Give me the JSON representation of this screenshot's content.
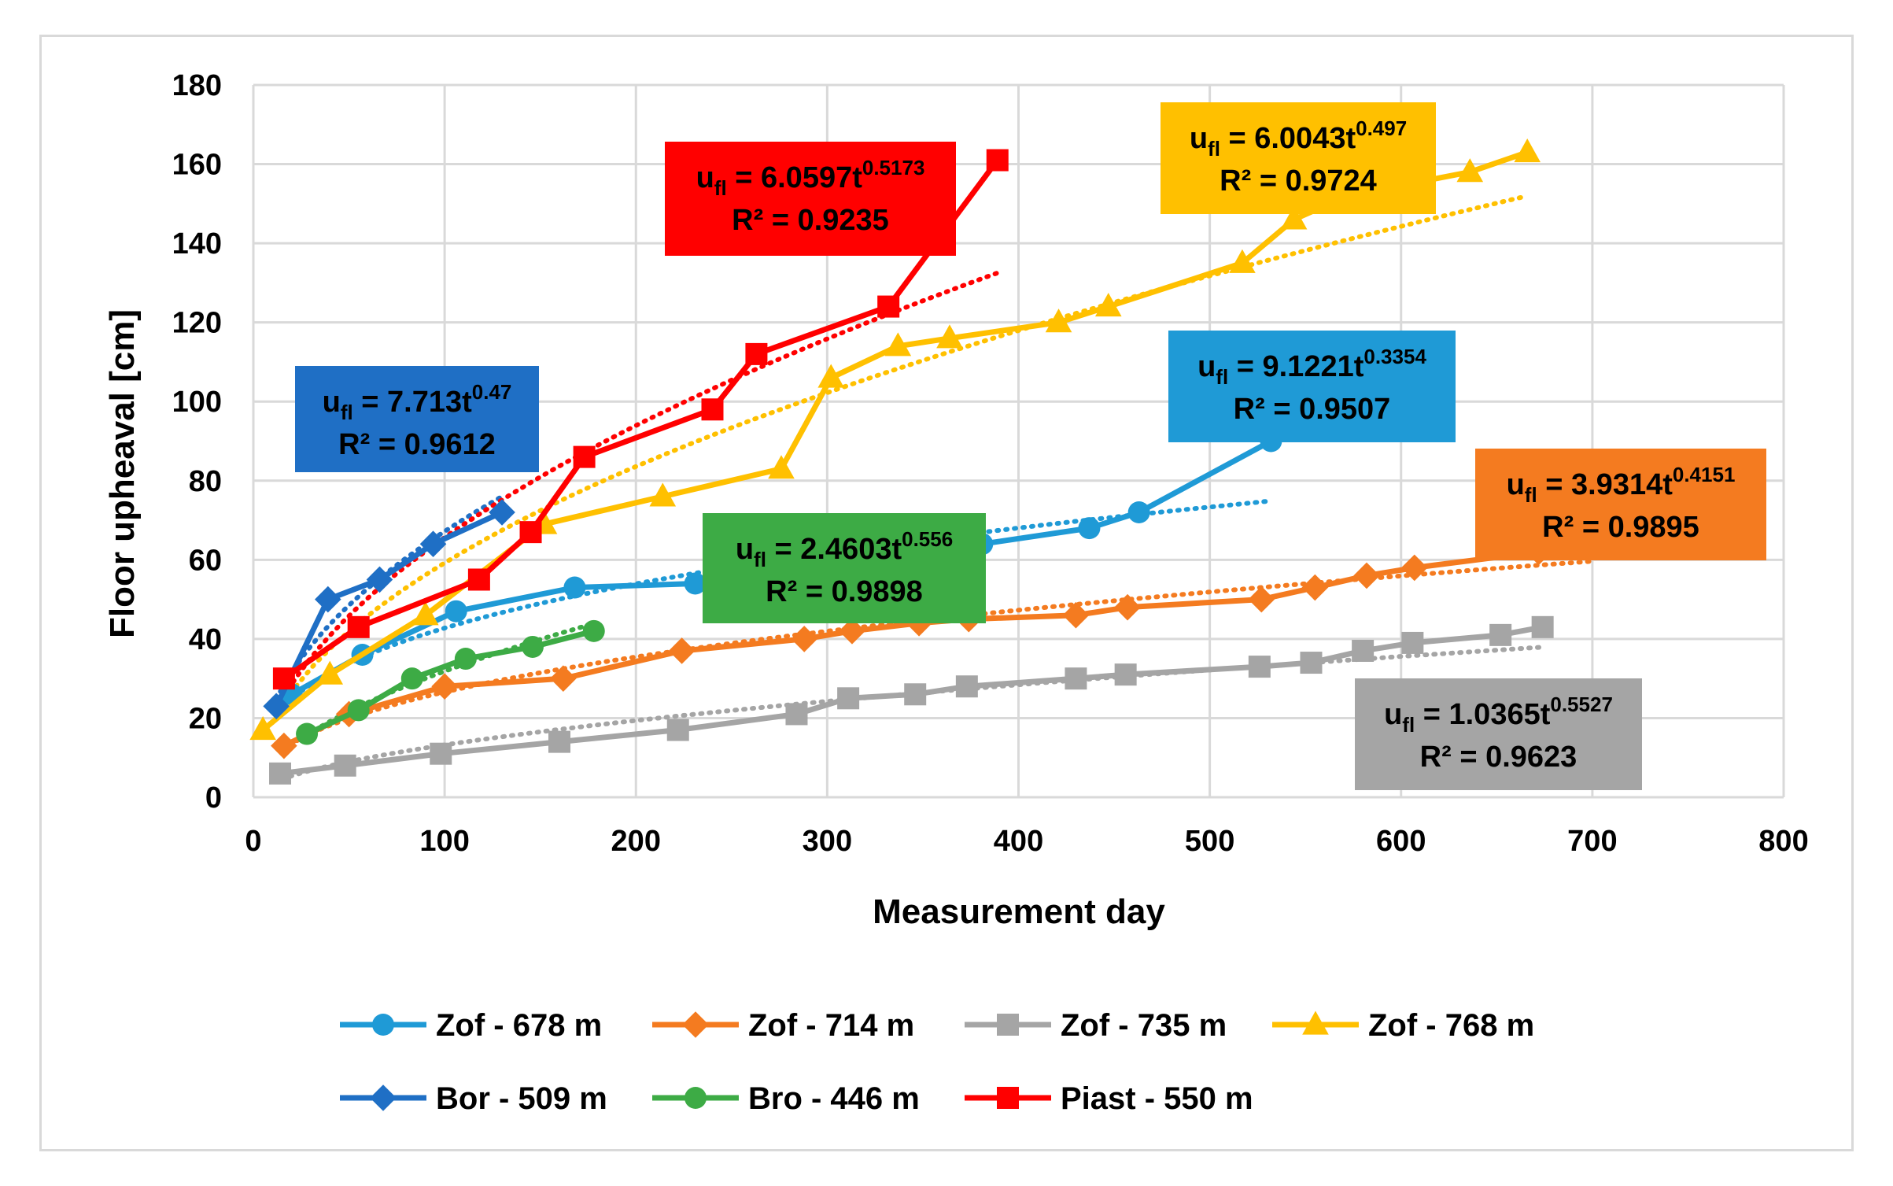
{
  "chart_data": {
    "type": "line",
    "xlabel": "Measurement day",
    "ylabel": "Floor upheaval [cm]",
    "xlim": [
      0,
      800
    ],
    "ylim": [
      0,
      180
    ],
    "xticks": [
      0,
      100,
      200,
      300,
      400,
      500,
      600,
      700,
      800
    ],
    "yticks": [
      0,
      20,
      40,
      60,
      80,
      100,
      120,
      140,
      160,
      180
    ],
    "grid": true,
    "legend_position": "bottom",
    "series": [
      {
        "name": "Zof - 678 m",
        "color": "#1f9ad6",
        "marker": "circle",
        "x": [
          20,
          57,
          106,
          168,
          231,
          345,
          381,
          437,
          463,
          532
        ],
        "y": [
          26,
          36,
          47,
          53,
          54,
          63,
          64,
          68,
          72,
          90
        ],
        "trend": {
          "x": [
            15,
            532
          ],
          "a": 9.1221,
          "b": 0.3354
        }
      },
      {
        "name": "Zof - 714 m",
        "color": "#f47b20",
        "marker": "diamond",
        "x": [
          16,
          50,
          100,
          162,
          224,
          288,
          313,
          348,
          374,
          430,
          457,
          527,
          555,
          582,
          607,
          672
        ],
        "y": [
          13,
          21,
          28,
          30,
          37,
          40,
          42,
          44,
          45,
          46,
          48,
          50,
          53,
          56,
          58,
          62
        ],
        "trend": {
          "x": [
            15,
            700
          ],
          "a": 3.9314,
          "b": 0.4151
        }
      },
      {
        "name": "Zof - 735 m",
        "color": "#a5a5a5",
        "marker": "square",
        "x": [
          14,
          48,
          98,
          160,
          222,
          284,
          311,
          346,
          373,
          430,
          456,
          526,
          553,
          580,
          606,
          652,
          674
        ],
        "y": [
          6,
          8,
          11,
          14,
          17,
          21,
          25,
          26,
          28,
          30,
          31,
          33,
          34,
          37,
          39,
          41,
          43
        ],
        "trend": {
          "x": [
            15,
            674
          ],
          "a": 1.0365,
          "b": 0.5527
        }
      },
      {
        "name": "Zof - 768 m",
        "color": "#ffc000",
        "marker": "triangle",
        "x": [
          5,
          40,
          90,
          152,
          214,
          276,
          302,
          337,
          364,
          421,
          447,
          517,
          544,
          572,
          636,
          666
        ],
        "y": [
          17,
          31,
          46,
          69,
          76,
          83,
          106,
          114,
          116,
          120,
          124,
          135,
          146,
          152,
          158,
          163
        ],
        "trend": {
          "x": [
            10,
            666
          ],
          "a": 6.0043,
          "b": 0.497
        }
      },
      {
        "name": "Bor - 509 m",
        "color": "#1f6fc5",
        "marker": "diamond",
        "x": [
          12,
          39,
          66,
          94,
          130
        ],
        "y": [
          23,
          50,
          55,
          64,
          72
        ],
        "trend": {
          "x": [
            12,
            130
          ],
          "a": 7.713,
          "b": 0.47
        }
      },
      {
        "name": "Bro - 446 m",
        "color": "#3dab45",
        "marker": "circle",
        "x": [
          28,
          55,
          83,
          111,
          146,
          178
        ],
        "y": [
          16,
          22,
          30,
          35,
          38,
          42
        ],
        "trend": {
          "x": [
            28,
            178
          ],
          "a": 2.4603,
          "b": 0.556
        }
      },
      {
        "name": "Piast - 550 m",
        "color": "#ff0000",
        "marker": "square",
        "x": [
          16,
          55,
          118,
          145,
          173,
          240,
          263,
          332,
          389
        ],
        "y": [
          30,
          43,
          55,
          67,
          86,
          98,
          112,
          124,
          161
        ],
        "trend": {
          "x": [
            16,
            389
          ],
          "a": 6.0597,
          "b": 0.5173
        }
      }
    ],
    "annotations": [
      {
        "series": "Bor - 509 m",
        "box_color": "#1f6fc5",
        "coeff": "7.713",
        "exponent": "0.47",
        "r2": "R² = 0.9612"
      },
      {
        "series": "Piast - 550 m",
        "box_color": "#ff0000",
        "coeff": "6.0597",
        "exponent": "0.5173",
        "r2": "R² = 0.9235"
      },
      {
        "series": "Zof - 768 m",
        "box_color": "#ffc000",
        "coeff": "6.0043",
        "exponent": "0.497",
        "r2": "R² = 0.9724"
      },
      {
        "series": "Zof - 678 m",
        "box_color": "#1f9ad6",
        "coeff": "9.1221",
        "exponent": "0.3354",
        "r2": "R² = 0.9507"
      },
      {
        "series": "Zof - 714 m",
        "box_color": "#f47b20",
        "coeff": "3.9314",
        "exponent": "0.4151",
        "r2": "R² = 0.9895"
      },
      {
        "series": "Bro - 446 m",
        "box_color": "#3dab45",
        "coeff": "2.4603",
        "exponent": "0.556",
        "r2": "R² = 0.9898"
      },
      {
        "series": "Zof - 735 m",
        "box_color": "#a5a5a5",
        "coeff": "1.0365",
        "exponent": "0.5527",
        "r2": "R² = 0.9623"
      }
    ]
  }
}
